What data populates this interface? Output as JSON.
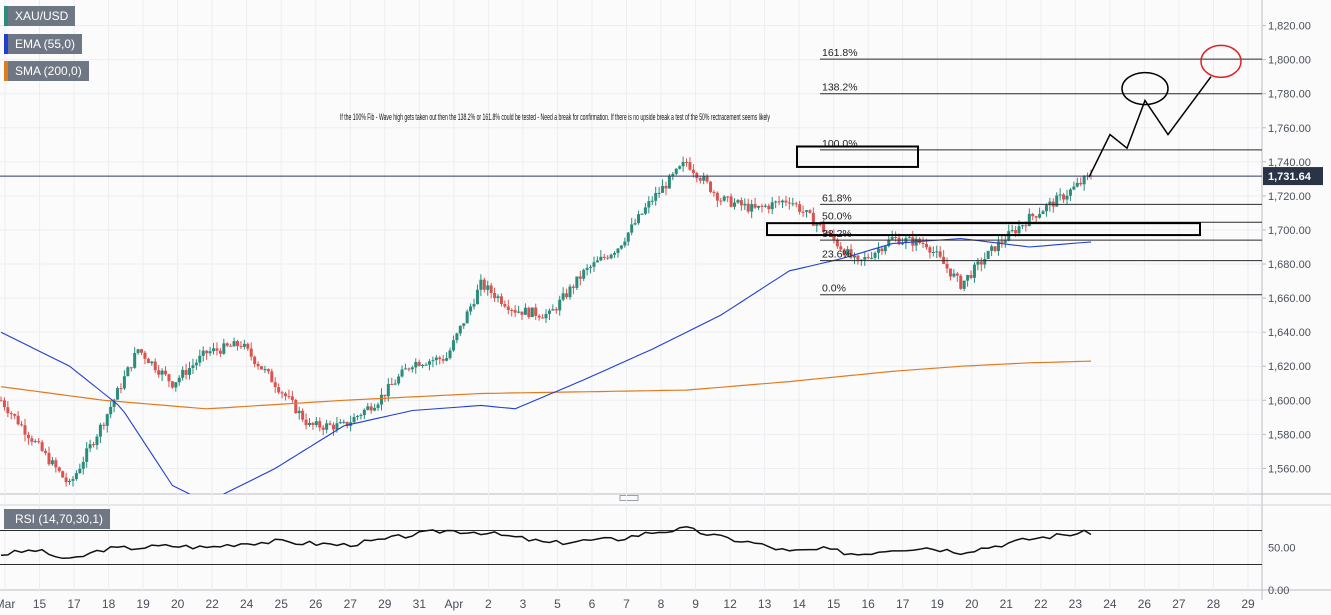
{
  "legend": [
    {
      "label": "XAU/USD",
      "color": "#2a8c7a"
    },
    {
      "label": "EMA (55,0)",
      "color": "#1f3fd1"
    },
    {
      "label": "SMA (200,0)",
      "color": "#e07b20"
    }
  ],
  "rsi_label": "RSI (14,70,30,1)",
  "annotation": "If the 100% Fib - Wave high gets taken out then  the 138.2% or 161.8% could be tested - Need a  break for confirmation.  If there is no upside break a test of the 50% rectracement seems likely",
  "price_tag": "1,731.64",
  "colors": {
    "up": "#2a8c7a",
    "down": "#d9534f",
    "ema": "#1f3fd1",
    "sma": "#e07b20",
    "price_line": "#2b3a67",
    "circle": "#e02020"
  },
  "chart_data": {
    "type": "candlestick",
    "symbol": "XAU/USD",
    "ylim": [
      1545,
      1835
    ],
    "y_ticks": [
      "1,560.00",
      "1,580.00",
      "1,600.00",
      "1,620.00",
      "1,640.00",
      "1,660.00",
      "1,680.00",
      "1,700.00",
      "1,720.00",
      "1,740.00",
      "1,760.00",
      "1,780.00",
      "1,800.00",
      "1,820.00"
    ],
    "x_ticks": [
      "Mar",
      "15",
      "17",
      "18",
      "19",
      "20",
      "22",
      "24",
      "25",
      "26",
      "27",
      "29",
      "31",
      "Apr",
      "2",
      "3",
      "5",
      "6",
      "7",
      "8",
      "9",
      "12",
      "13",
      "14",
      "15",
      "16",
      "17",
      "19",
      "20",
      "21",
      "22",
      "23",
      "24",
      "26",
      "27",
      "28",
      "29"
    ],
    "last_price": 1731.64,
    "price_anchors": [
      [
        0,
        1600
      ],
      [
        20,
        1550
      ],
      [
        30,
        1588
      ],
      [
        40,
        1630
      ],
      [
        50,
        1610
      ],
      [
        60,
        1628
      ],
      [
        70,
        1633
      ],
      [
        80,
        1610
      ],
      [
        90,
        1585
      ],
      [
        100,
        1585
      ],
      [
        110,
        1600
      ],
      [
        120,
        1622
      ],
      [
        130,
        1625
      ],
      [
        140,
        1668
      ],
      [
        150,
        1653
      ],
      [
        160,
        1650
      ],
      [
        170,
        1675
      ],
      [
        180,
        1690
      ],
      [
        190,
        1718
      ],
      [
        200,
        1740
      ],
      [
        210,
        1718
      ],
      [
        220,
        1712
      ],
      [
        230,
        1718
      ],
      [
        240,
        1700
      ],
      [
        250,
        1680
      ],
      [
        260,
        1695
      ],
      [
        270,
        1692
      ],
      [
        280,
        1668
      ],
      [
        290,
        1690
      ],
      [
        300,
        1707
      ],
      [
        310,
        1720
      ],
      [
        318,
        1732
      ]
    ],
    "ema_anchors": [
      [
        0,
        1640
      ],
      [
        20,
        1620
      ],
      [
        35,
        1596
      ],
      [
        50,
        1550
      ],
      [
        60,
        1540
      ],
      [
        80,
        1560
      ],
      [
        100,
        1585
      ],
      [
        120,
        1594
      ],
      [
        140,
        1597
      ],
      [
        150,
        1595
      ],
      [
        170,
        1612
      ],
      [
        190,
        1630
      ],
      [
        210,
        1650
      ],
      [
        230,
        1676
      ],
      [
        245,
        1683
      ],
      [
        260,
        1692
      ],
      [
        280,
        1695
      ],
      [
        300,
        1690
      ],
      [
        318,
        1693
      ]
    ],
    "sma_anchors": [
      [
        0,
        1608
      ],
      [
        30,
        1600
      ],
      [
        60,
        1595
      ],
      [
        100,
        1600
      ],
      [
        140,
        1604
      ],
      [
        170,
        1605
      ],
      [
        200,
        1606
      ],
      [
        230,
        1611
      ],
      [
        260,
        1617
      ],
      [
        280,
        1620
      ],
      [
        300,
        1622
      ],
      [
        318,
        1623
      ]
    ],
    "fib_levels": [
      {
        "label": "161.8%",
        "price": 1800.3
      },
      {
        "label": "138.2%",
        "price": 1780
      },
      {
        "label": "100.0%",
        "price": 1747
      },
      {
        "label": "61.8%",
        "price": 1715
      },
      {
        "label": "50.0%",
        "price": 1704.5
      },
      {
        "label": "38.2%",
        "price": 1694
      },
      {
        "label": "23.6%",
        "price": 1682
      },
      {
        "label": "0.0%",
        "price": 1662
      }
    ],
    "projection_path": [
      [
        1731,
        1089
      ],
      [
        1756,
        1110
      ],
      [
        1748,
        1127
      ],
      [
        1776,
        1145
      ],
      [
        1756,
        1168
      ],
      [
        1790,
        1211
      ]
    ],
    "rsi": {
      "ylim": [
        0,
        100
      ],
      "y_ticks": [
        "0.00",
        "50.00"
      ],
      "overbought": 70,
      "oversold": 30,
      "anchors": [
        [
          0,
          42
        ],
        [
          10,
          47
        ],
        [
          20,
          35
        ],
        [
          30,
          48
        ],
        [
          40,
          50
        ],
        [
          50,
          52
        ],
        [
          60,
          50
        ],
        [
          70,
          55
        ],
        [
          80,
          57
        ],
        [
          90,
          55
        ],
        [
          100,
          53
        ],
        [
          110,
          58
        ],
        [
          120,
          65
        ],
        [
          130,
          70
        ],
        [
          140,
          68
        ],
        [
          150,
          62
        ],
        [
          160,
          55
        ],
        [
          170,
          58
        ],
        [
          180,
          60
        ],
        [
          190,
          68
        ],
        [
          200,
          72
        ],
        [
          210,
          62
        ],
        [
          220,
          55
        ],
        [
          230,
          45
        ],
        [
          240,
          48
        ],
        [
          250,
          42
        ],
        [
          260,
          48
        ],
        [
          270,
          50
        ],
        [
          280,
          45
        ],
        [
          290,
          52
        ],
        [
          300,
          60
        ],
        [
          310,
          65
        ],
        [
          318,
          68
        ]
      ]
    }
  }
}
